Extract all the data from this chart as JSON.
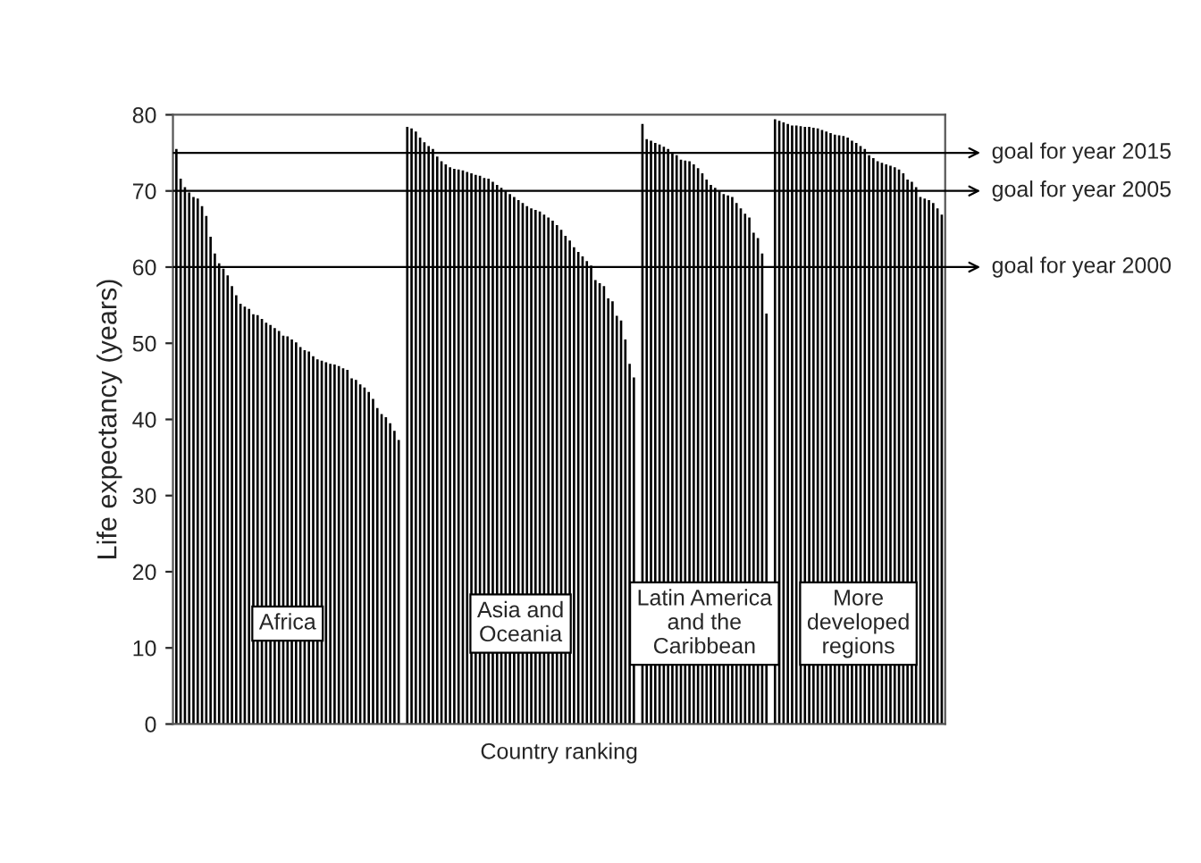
{
  "chart_data": {
    "type": "bar",
    "xlabel": "Country ranking",
    "ylabel": "Life expectancy (years)",
    "ylim": [
      0,
      80
    ],
    "yticks": [
      0,
      10,
      20,
      30,
      40,
      50,
      60,
      70,
      80
    ],
    "grid": false,
    "categories": [
      null,
      null,
      null,
      null,
      null,
      null,
      null,
      null,
      null,
      null,
      null,
      null,
      null,
      null,
      null,
      null,
      null,
      null,
      null,
      null,
      null,
      null,
      null,
      null,
      null,
      null,
      null,
      null,
      null,
      null,
      null,
      null,
      null,
      null,
      null,
      null,
      null,
      null,
      null,
      null,
      null,
      null,
      null,
      null,
      null,
      null,
      null,
      null,
      null,
      null,
      null,
      null,
      null,
      null,
      null,
      null,
      null,
      null,
      null,
      null,
      null,
      null,
      null,
      null,
      null,
      null,
      null,
      null,
      null,
      null,
      null,
      null,
      null,
      null,
      null,
      null,
      null,
      null,
      null,
      null,
      null,
      null,
      null,
      null,
      null,
      null,
      null,
      null,
      null,
      null,
      null,
      null,
      null,
      null,
      null,
      null,
      null,
      null,
      null,
      null,
      null,
      null,
      null,
      null,
      null,
      null,
      null,
      null,
      null,
      null,
      null,
      null,
      null,
      null,
      null,
      null,
      null,
      null,
      null,
      null,
      null,
      null,
      null,
      null,
      null,
      null,
      null,
      null,
      null,
      null,
      null,
      null,
      null,
      null,
      null,
      null,
      null,
      null,
      null,
      null,
      null,
      null,
      null,
      null,
      null,
      null,
      null,
      null,
      null,
      null,
      null,
      null,
      null,
      null,
      null,
      null,
      null,
      null,
      null,
      null,
      null,
      null,
      null,
      null,
      null,
      null,
      null,
      null,
      null,
      null,
      null,
      null,
      null,
      null,
      null,
      null,
      null,
      null,
      null,
      null
    ],
    "series": [
      {
        "color": "#000000",
        "values": [
          75.5,
          71.6,
          70.5,
          69.8,
          69.2,
          69.0,
          68.0,
          66.7,
          64.0,
          61.8,
          60.5,
          59.8,
          58.9,
          57.5,
          56.3,
          55.2,
          54.8,
          54.5,
          53.8,
          53.7,
          53.2,
          52.7,
          52.4,
          52.0,
          51.6,
          51.0,
          50.9,
          50.5,
          50.1,
          49.5,
          49.1,
          48.9,
          48.3,
          47.9,
          47.7,
          47.5,
          47.3,
          47.2,
          47.0,
          46.7,
          46.5,
          45.4,
          45.2,
          44.6,
          44.2,
          43.6,
          42.7,
          41.5,
          40.7,
          40.3,
          39.5,
          38.5,
          37.3,
          null,
          78.4,
          78.2,
          77.8,
          77.0,
          76.4,
          75.9,
          75.5,
          74.5,
          73.9,
          73.5,
          73.1,
          72.9,
          72.8,
          72.7,
          72.5,
          72.3,
          72.1,
          72.0,
          71.7,
          71.6,
          71.2,
          70.8,
          70.4,
          70.0,
          69.6,
          69.2,
          68.8,
          68.4,
          68.0,
          67.7,
          67.5,
          67.3,
          66.9,
          66.5,
          66.1,
          65.5,
          64.9,
          64.1,
          63.5,
          62.6,
          62.0,
          61.4,
          60.8,
          60.2,
          58.3,
          57.9,
          57.5,
          55.9,
          55.5,
          53.6,
          53.0,
          50.5,
          47.3,
          45.5,
          null,
          78.8,
          76.8,
          76.6,
          76.3,
          76.1,
          75.8,
          75.5,
          75.0,
          74.7,
          74.1,
          74.0,
          73.9,
          73.5,
          73.0,
          72.3,
          71.5,
          70.8,
          70.4,
          70.0,
          69.6,
          69.4,
          69.2,
          68.4,
          67.7,
          67.0,
          66.5,
          64.5,
          63.8,
          61.8,
          53.9,
          null,
          79.4,
          79.2,
          79.0,
          78.8,
          78.6,
          78.6,
          78.5,
          78.4,
          78.4,
          78.3,
          78.2,
          78.0,
          77.8,
          77.6,
          77.4,
          77.3,
          77.2,
          77.0,
          76.6,
          76.3,
          75.9,
          75.5,
          74.7,
          74.3,
          73.9,
          73.7,
          73.5,
          73.3,
          73.1,
          72.8,
          72.3,
          71.5,
          71.2,
          70.5,
          69.2,
          69.0,
          68.8,
          68.4,
          67.7,
          66.9
        ]
      }
    ],
    "ref_lines": [
      {
        "axis": "y",
        "value": 75,
        "label": "goal for year 2015",
        "color": "#000000"
      },
      {
        "axis": "y",
        "value": 70,
        "label": "goal for year 2005",
        "color": "#000000"
      },
      {
        "axis": "y",
        "value": 60,
        "label": "goal for year 2000",
        "color": "#000000"
      }
    ],
    "annotations": [
      "Africa",
      "Asia and\nOceania",
      "Latin America\nand the\nCaribbean",
      "More\ndeveloped\nregions"
    ]
  }
}
